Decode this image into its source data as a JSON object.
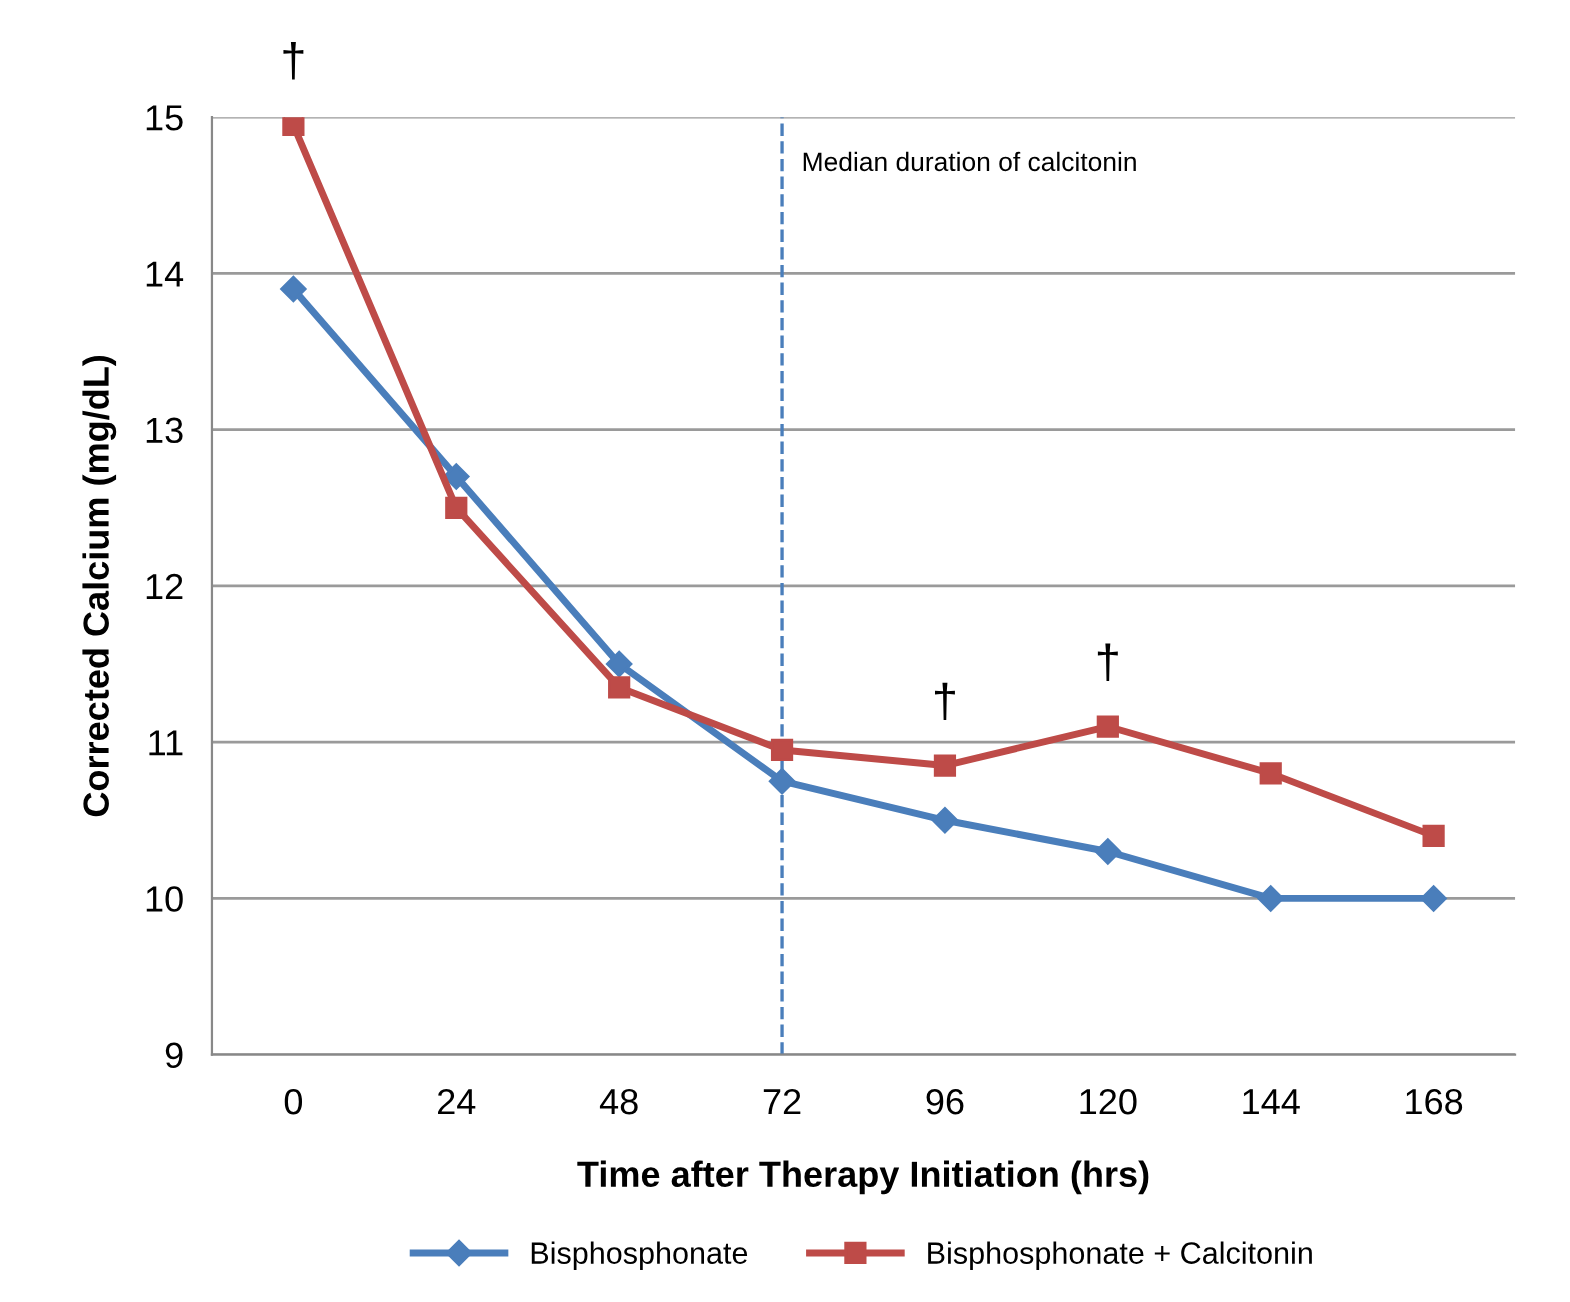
{
  "chart_data": {
    "type": "line",
    "xlabel": "Time after Therapy Initiation (hrs)",
    "ylabel": "Corrected Calcium (mg/dL)",
    "categories": [
      "0",
      "24",
      "48",
      "72",
      "96",
      "120",
      "144",
      "168"
    ],
    "series": [
      {
        "name": "Bisphosphonate",
        "color": "#4a7ebb",
        "marker": "diamond",
        "values": [
          13.9,
          12.7,
          11.5,
          10.75,
          10.5,
          10.3,
          10.0,
          10.0
        ]
      },
      {
        "name": "Bisphosphonate + Calcitonin",
        "color": "#be4b48",
        "marker": "square",
        "values": [
          14.95,
          12.5,
          11.35,
          10.95,
          10.85,
          11.1,
          10.8,
          10.4
        ]
      }
    ],
    "ylim": [
      9,
      15
    ],
    "yticks": [
      9,
      10,
      11,
      12,
      13,
      14,
      15
    ],
    "grid": "y",
    "legend": "bottom",
    "ref_lines": [
      {
        "axis": "x",
        "value": "72",
        "label": "Median duration of calcitonin",
        "color": "#4a7ebb",
        "line_style": "dashed"
      }
    ],
    "annotations": [
      {
        "text": "†",
        "x": "0",
        "y": 14.95
      },
      {
        "text": "†",
        "x": "96",
        "y": 10.85
      },
      {
        "text": "†",
        "x": "120",
        "y": 11.1
      }
    ]
  }
}
